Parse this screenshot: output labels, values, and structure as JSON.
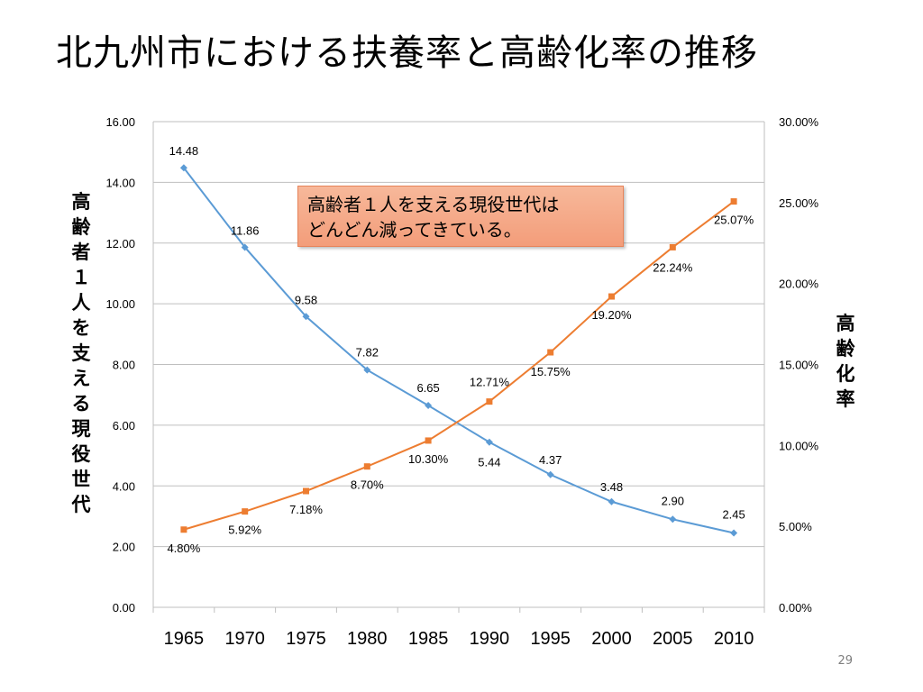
{
  "title": "北九州市における扶養率と高齢化率の推移",
  "callout": [
    "高齢者１人を支える現役世代は",
    "どんどん減ってきている。"
  ],
  "page_number": "29",
  "chart_data": {
    "type": "line",
    "title": "",
    "x": [
      "1965",
      "1970",
      "1975",
      "1980",
      "1985",
      "1990",
      "1995",
      "2000",
      "2005",
      "2010"
    ],
    "ylabel_left": "高齢者１人を支える現役世代",
    "ylabel_right": "高齢化率",
    "y_left": {
      "range": [
        0,
        16
      ],
      "step": 2,
      "ticks": [
        "0.00",
        "2.00",
        "4.00",
        "6.00",
        "8.00",
        "10.00",
        "12.00",
        "14.00",
        "16.00"
      ]
    },
    "y_right": {
      "range": [
        0,
        30
      ],
      "step": 5,
      "ticks": [
        "0.00%",
        "5.00%",
        "10.00%",
        "15.00%",
        "20.00%",
        "25.00%",
        "30.00%"
      ]
    },
    "grid": "horizontal",
    "legend": "none",
    "series": [
      {
        "axis": "left",
        "color": "#5b9bd5",
        "marker": "diamond",
        "values": [
          14.48,
          11.86,
          9.58,
          7.82,
          6.65,
          5.44,
          4.37,
          3.48,
          2.9,
          2.45
        ],
        "labels": [
          "14.48",
          "11.86",
          "9.58",
          "7.82",
          "6.65",
          "5.44",
          "4.37",
          "3.48",
          "2.90",
          "2.45"
        ]
      },
      {
        "axis": "right",
        "color": "#ed7d31",
        "marker": "square",
        "values": [
          4.8,
          5.92,
          7.18,
          8.7,
          10.3,
          12.71,
          15.75,
          19.2,
          22.24,
          25.07
        ],
        "labels": [
          "4.80%",
          "5.92%",
          "7.18%",
          "8.70%",
          "10.30%",
          "12.71%",
          "15.75%",
          "19.20%",
          "22.24%",
          "25.07%"
        ]
      }
    ]
  }
}
